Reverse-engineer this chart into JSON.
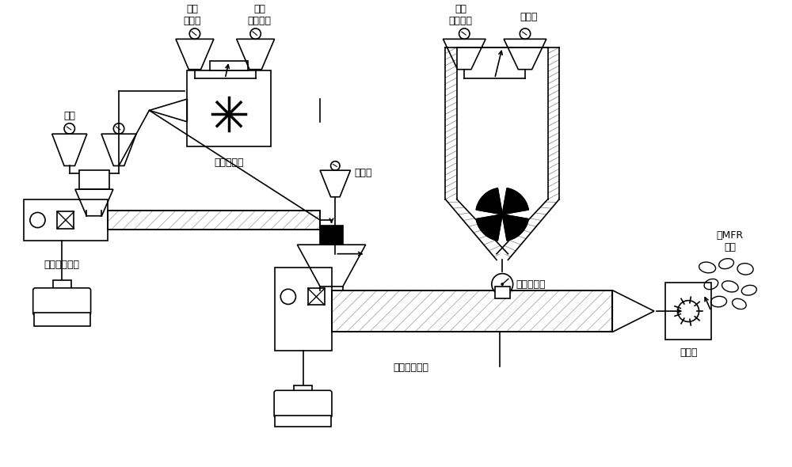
{
  "bg_color": "#ffffff",
  "line_color": "#000000",
  "labels": {
    "junju_pp": "均聚\n聚丙烯",
    "organic_peroxide": "有机\n过氧化物",
    "carbon_black": "炭黑",
    "high_speed_mixer": "高速混合机",
    "twin_rotor": "双转子混炼机",
    "antioxidant": "抗氧剂",
    "liquid_epr": "液体\n乙丙橡胶",
    "paraffin_oil": "石蜡油",
    "liquid_metering_pump": "液体计量泵",
    "single_screw": "单螺杆挤出机",
    "pelletizer": "切粒机",
    "high_mfr": "高MFR\n母粒"
  }
}
